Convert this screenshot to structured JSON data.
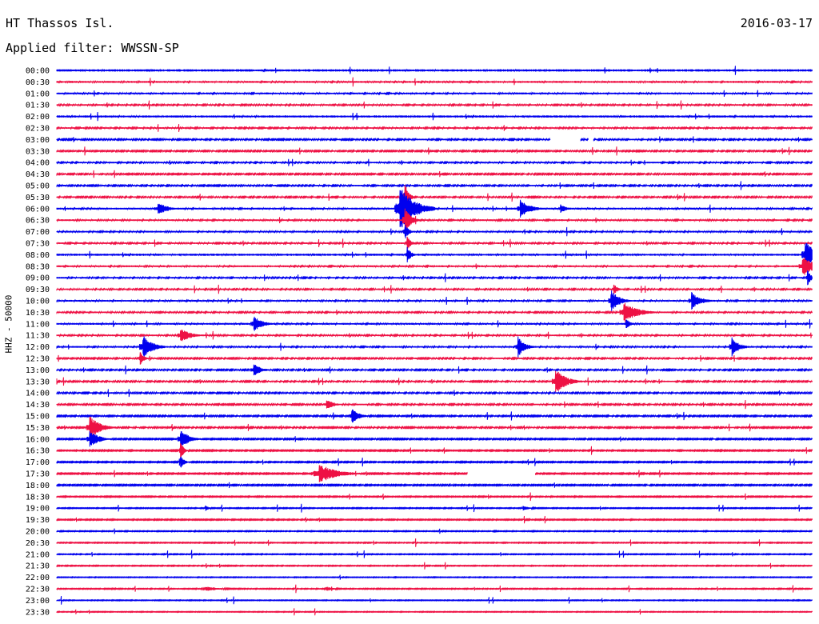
{
  "header": {
    "station": "HT Thassos Isl.",
    "date": "2016-03-17",
    "filter_text": "Applied filter: WWSSN-SP"
  },
  "colors": {
    "trace_a": "#0000ee",
    "trace_b": "#ee1144",
    "background": "#ffffff"
  },
  "chart_data": {
    "type": "line",
    "subtype": "helicorder",
    "ylabel": "HHZ - 50000",
    "y_tick_labels": [
      "00:00",
      "00:30",
      "01:00",
      "01:30",
      "02:00",
      "02:30",
      "03:00",
      "03:30",
      "04:00",
      "04:30",
      "05:00",
      "05:30",
      "06:00",
      "06:30",
      "07:00",
      "07:30",
      "08:00",
      "08:30",
      "09:00",
      "09:30",
      "10:00",
      "10:30",
      "11:00",
      "11:30",
      "12:00",
      "12:30",
      "13:00",
      "13:30",
      "14:00",
      "14:30",
      "15:00",
      "15:30",
      "16:00",
      "16:30",
      "17:00",
      "17:30",
      "18:00",
      "18:30",
      "19:00",
      "19:30",
      "20:00",
      "20:30",
      "21:00",
      "21:30",
      "22:00",
      "22:30",
      "23:00",
      "23:30"
    ],
    "x_range_minutes": [
      0,
      30
    ],
    "line_duration_minutes": 30,
    "trace_colors_alternate": [
      "#0000ee",
      "#ee1144"
    ],
    "noise_levels": [
      0.9,
      0.75,
      0.7,
      0.6,
      0.8,
      0.6,
      0.55,
      0.5,
      0.6,
      0.5,
      0.55,
      0.55,
      0.7,
      0.65,
      0.65,
      0.6,
      0.8,
      0.7,
      0.6,
      0.6,
      0.65,
      0.6,
      0.7,
      0.6,
      0.65,
      0.55,
      0.55,
      0.55,
      0.55,
      0.55,
      0.5,
      0.5,
      0.45,
      0.4,
      0.4,
      0.4,
      0.45,
      0.35,
      0.3,
      0.35,
      0.3,
      0.3,
      0.3,
      0.3,
      0.25,
      0.3,
      0.25,
      0.25
    ],
    "gaps": [
      {
        "line": 6,
        "start_min": 19.6,
        "end_min": 20.8
      },
      {
        "line": 6,
        "start_min": 21.1,
        "end_min": 21.3
      },
      {
        "line": 35,
        "start_min": 16.3,
        "end_min": 19.0
      }
    ],
    "events": [
      {
        "line": 12,
        "t_min": 13.6,
        "amp": 30,
        "dur_min": 1.2
      },
      {
        "line": 11,
        "t_min": 13.8,
        "amp": 25,
        "dur_min": 0.3
      },
      {
        "line": 13,
        "t_min": 13.8,
        "amp": 18,
        "dur_min": 0.5
      },
      {
        "line": 14,
        "t_min": 13.8,
        "amp": 12,
        "dur_min": 0.3
      },
      {
        "line": 15,
        "t_min": 13.9,
        "amp": 10,
        "dur_min": 0.3
      },
      {
        "line": 16,
        "t_min": 13.9,
        "amp": 12,
        "dur_min": 0.3
      },
      {
        "line": 12,
        "t_min": 4.0,
        "amp": 9,
        "dur_min": 0.8
      },
      {
        "line": 12,
        "t_min": 18.4,
        "amp": 12,
        "dur_min": 0.8
      },
      {
        "line": 12,
        "t_min": 20.0,
        "amp": 6,
        "dur_min": 0.5
      },
      {
        "line": 16,
        "t_min": 29.7,
        "amp": 18,
        "dur_min": 0.9
      },
      {
        "line": 17,
        "t_min": 29.6,
        "amp": 14,
        "dur_min": 0.9
      },
      {
        "line": 18,
        "t_min": 29.8,
        "amp": 10,
        "dur_min": 0.3
      },
      {
        "line": 20,
        "t_min": 22.0,
        "amp": 14,
        "dur_min": 0.7
      },
      {
        "line": 19,
        "t_min": 22.1,
        "amp": 8,
        "dur_min": 0.3
      },
      {
        "line": 20,
        "t_min": 25.2,
        "amp": 11,
        "dur_min": 0.8
      },
      {
        "line": 21,
        "t_min": 22.5,
        "amp": 14,
        "dur_min": 1.1
      },
      {
        "line": 22,
        "t_min": 22.6,
        "amp": 8,
        "dur_min": 0.3
      },
      {
        "line": 22,
        "t_min": 7.8,
        "amp": 11,
        "dur_min": 0.7
      },
      {
        "line": 23,
        "t_min": 4.9,
        "amp": 10,
        "dur_min": 0.8
      },
      {
        "line": 24,
        "t_min": 3.4,
        "amp": 16,
        "dur_min": 0.8
      },
      {
        "line": 25,
        "t_min": 3.3,
        "amp": 10,
        "dur_min": 0.3
      },
      {
        "line": 24,
        "t_min": 18.3,
        "amp": 14,
        "dur_min": 0.6
      },
      {
        "line": 24,
        "t_min": 26.8,
        "amp": 13,
        "dur_min": 0.6
      },
      {
        "line": 26,
        "t_min": 7.8,
        "amp": 9,
        "dur_min": 0.6
      },
      {
        "line": 27,
        "t_min": 19.8,
        "amp": 16,
        "dur_min": 0.9
      },
      {
        "line": 29,
        "t_min": 10.7,
        "amp": 7,
        "dur_min": 0.6
      },
      {
        "line": 30,
        "t_min": 11.7,
        "amp": 10,
        "dur_min": 0.6
      },
      {
        "line": 31,
        "t_min": 1.3,
        "amp": 15,
        "dur_min": 0.9
      },
      {
        "line": 32,
        "t_min": 1.3,
        "amp": 13,
        "dur_min": 0.7
      },
      {
        "line": 32,
        "t_min": 4.9,
        "amp": 13,
        "dur_min": 0.7
      },
      {
        "line": 33,
        "t_min": 4.9,
        "amp": 12,
        "dur_min": 0.3
      },
      {
        "line": 34,
        "t_min": 4.9,
        "amp": 10,
        "dur_min": 0.3
      },
      {
        "line": 35,
        "t_min": 10.4,
        "amp": 13,
        "dur_min": 1.4
      },
      {
        "line": 38,
        "t_min": 5.9,
        "amp": 4,
        "dur_min": 0.3
      },
      {
        "line": 38,
        "t_min": 18.5,
        "amp": 3,
        "dur_min": 0.6
      },
      {
        "line": 45,
        "t_min": 5.9,
        "amp": 3,
        "dur_min": 1.2
      },
      {
        "line": 45,
        "t_min": 10.7,
        "amp": 3,
        "dur_min": 0.6
      }
    ]
  }
}
